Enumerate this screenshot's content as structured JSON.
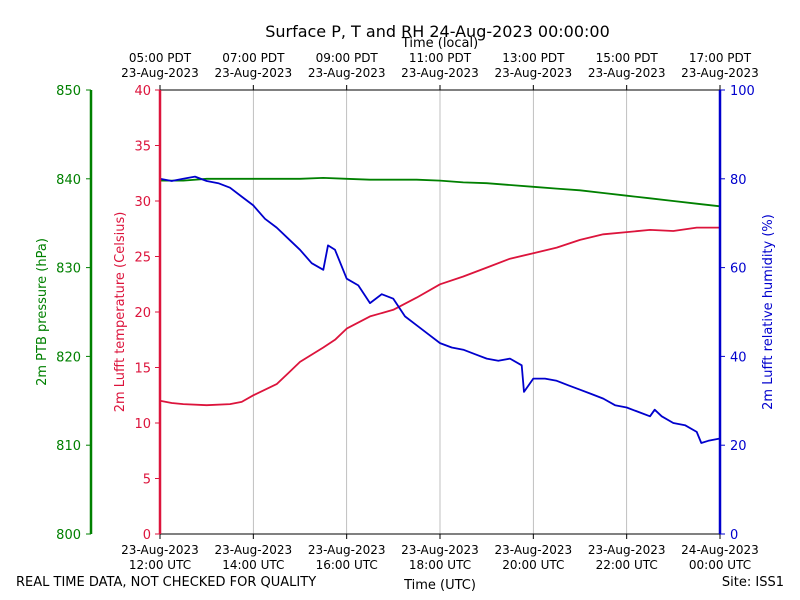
{
  "title": "Surface P, T and RH 24-Aug-2023 00:00:00",
  "footer": {
    "quality_note": "REAL TIME DATA, NOT CHECKED FOR QUALITY",
    "site": "Site: ISS1"
  },
  "chart_data": {
    "type": "line",
    "title": "Surface P, T and RH 24-Aug-2023 00:00:00",
    "x_bottom_label": "Time (UTC)",
    "x_top_label": "Time (local)",
    "x_range_hours_utc": [
      12,
      24
    ],
    "x_ticks": [
      {
        "utc_date": "23-Aug-2023",
        "utc_time": "12:00 UTC",
        "local_time": "05:00 PDT",
        "local_date": "23-Aug-2023",
        "hour": 12
      },
      {
        "utc_date": "23-Aug-2023",
        "utc_time": "14:00 UTC",
        "local_time": "07:00 PDT",
        "local_date": "23-Aug-2023",
        "hour": 14
      },
      {
        "utc_date": "23-Aug-2023",
        "utc_time": "16:00 UTC",
        "local_time": "09:00 PDT",
        "local_date": "23-Aug-2023",
        "hour": 16
      },
      {
        "utc_date": "23-Aug-2023",
        "utc_time": "18:00 UTC",
        "local_time": "11:00 PDT",
        "local_date": "23-Aug-2023",
        "hour": 18
      },
      {
        "utc_date": "23-Aug-2023",
        "utc_time": "20:00 UTC",
        "local_time": "13:00 PDT",
        "local_date": "23-Aug-2023",
        "hour": 20
      },
      {
        "utc_date": "23-Aug-2023",
        "utc_time": "22:00 UTC",
        "local_time": "15:00 PDT",
        "local_date": "23-Aug-2023",
        "hour": 22
      },
      {
        "utc_date": "24-Aug-2023",
        "utc_time": "00:00 UTC",
        "local_time": "17:00 PDT",
        "local_date": "23-Aug-2023",
        "hour": 24
      }
    ],
    "grid": "vertical",
    "axes": {
      "pressure": {
        "label": "2m PTB pressure (hPa)",
        "range": [
          800,
          850
        ],
        "ticks": [
          800,
          810,
          820,
          830,
          840,
          850
        ],
        "color": "#008000"
      },
      "temperature": {
        "label": "2m Lufft temperature (Celsius)",
        "range": [
          0,
          40
        ],
        "ticks": [
          0,
          5,
          10,
          15,
          20,
          25,
          30,
          35,
          40
        ],
        "color": "#dc143c"
      },
      "humidity": {
        "label": "2m Lufft relative humidity (%)",
        "range": [
          0,
          100
        ],
        "ticks": [
          0,
          20,
          40,
          60,
          80,
          100
        ],
        "color": "#0000cd"
      }
    },
    "series": [
      {
        "axis": "pressure",
        "color": "#008000",
        "x": [
          12.0,
          12.5,
          13.0,
          13.5,
          14.0,
          14.5,
          15.0,
          15.5,
          16.0,
          16.5,
          17.0,
          17.5,
          18.0,
          18.5,
          19.0,
          19.5,
          20.0,
          20.5,
          21.0,
          21.5,
          22.0,
          22.5,
          23.0,
          23.5,
          24.0
        ],
        "values": [
          839.8,
          839.8,
          840.0,
          840.0,
          840.0,
          840.0,
          840.0,
          840.1,
          840.0,
          839.9,
          839.9,
          839.9,
          839.8,
          839.6,
          839.5,
          839.3,
          839.1,
          838.9,
          838.7,
          838.4,
          838.1,
          837.8,
          837.5,
          837.2,
          836.9
        ]
      },
      {
        "axis": "temperature",
        "color": "#dc143c",
        "x": [
          12.0,
          12.25,
          12.5,
          13.0,
          13.5,
          13.75,
          14.0,
          14.5,
          14.75,
          15.0,
          15.5,
          15.75,
          16.0,
          16.5,
          17.0,
          17.5,
          18.0,
          18.5,
          19.0,
          19.5,
          20.0,
          20.5,
          21.0,
          21.5,
          22.0,
          22.5,
          23.0,
          23.5,
          24.0
        ],
        "values": [
          12.0,
          11.8,
          11.7,
          11.6,
          11.7,
          11.9,
          12.5,
          13.5,
          14.5,
          15.5,
          16.8,
          17.5,
          18.5,
          19.6,
          20.2,
          21.3,
          22.5,
          23.2,
          24.0,
          24.8,
          25.3,
          25.8,
          26.5,
          27.0,
          27.2,
          27.4,
          27.3,
          27.6,
          27.6
        ]
      },
      {
        "axis": "humidity",
        "color": "#0000cd",
        "x": [
          12.0,
          12.25,
          12.5,
          12.75,
          13.0,
          13.25,
          13.5,
          13.75,
          14.0,
          14.25,
          14.5,
          14.75,
          15.0,
          15.25,
          15.5,
          15.6,
          15.75,
          16.0,
          16.25,
          16.5,
          16.75,
          17.0,
          17.25,
          17.5,
          17.75,
          18.0,
          18.25,
          18.5,
          18.75,
          19.0,
          19.25,
          19.5,
          19.75,
          19.8,
          20.0,
          20.25,
          20.5,
          20.75,
          21.0,
          21.25,
          21.5,
          21.75,
          22.0,
          22.25,
          22.5,
          22.6,
          22.75,
          23.0,
          23.25,
          23.5,
          23.6,
          23.75,
          24.0
        ],
        "values": [
          80.0,
          79.5,
          80.0,
          80.5,
          79.5,
          79.0,
          78.0,
          76.0,
          74.0,
          71.0,
          69.0,
          66.5,
          64.0,
          61.0,
          59.5,
          65.0,
          64.0,
          57.5,
          56.0,
          52.0,
          54.0,
          53.0,
          49.0,
          47.0,
          45.0,
          43.0,
          42.0,
          41.5,
          40.5,
          39.5,
          39.0,
          39.5,
          38.0,
          32.0,
          35.0,
          35.0,
          34.5,
          33.5,
          32.5,
          31.5,
          30.5,
          29.0,
          28.5,
          27.5,
          26.5,
          28.0,
          26.5,
          25.0,
          24.5,
          23.0,
          20.5,
          21.0,
          21.5
        ]
      }
    ]
  }
}
